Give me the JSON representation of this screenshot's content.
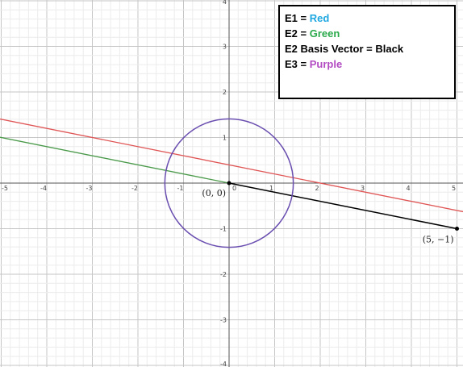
{
  "chart_data": {
    "type": "line",
    "xlim": [
      -5,
      5
    ],
    "ylim": [
      -4,
      4
    ],
    "grid": true,
    "x_ticks": [
      "-5",
      "-4",
      "-3",
      "-2",
      "-1",
      "0",
      "1",
      "2",
      "3",
      "4",
      "5"
    ],
    "y_ticks": [
      "4",
      "3",
      "2",
      "1",
      "-1",
      "-2",
      "-3",
      "-4"
    ],
    "series": [
      {
        "name": "E1",
        "kind": "line",
        "color": "#e05555",
        "points": [
          [
            -5,
            1.4
          ],
          [
            5,
            -0.6
          ]
        ]
      },
      {
        "name": "E2",
        "kind": "line",
        "color": "#4a9a4a",
        "points": [
          [
            -5,
            1.0
          ],
          [
            0,
            0
          ]
        ]
      },
      {
        "name": "E2 Basis Vector",
        "kind": "segment",
        "color": "#000000",
        "points": [
          [
            0,
            0
          ],
          [
            5,
            -1
          ]
        ]
      },
      {
        "name": "E3",
        "kind": "circle",
        "color": "#6a4fb0",
        "center": [
          0,
          0
        ],
        "radius": 1.41
      }
    ],
    "points": [
      {
        "label": "(0, 0)",
        "x": 0,
        "y": 0
      },
      {
        "label": "(5, −1)",
        "x": 5,
        "y": -1
      }
    ],
    "legend": {
      "placement": "top-right",
      "entries": [
        {
          "prefix": "E1 = ",
          "color_word": "Red",
          "color": "#1ea7e0"
        },
        {
          "prefix": "E2 = ",
          "color_word": "Green",
          "color": "#2aa94b"
        },
        {
          "prefix": "E2 Basis Vector = ",
          "color_word": "Black",
          "color": "#000000"
        },
        {
          "prefix": "E3 = ",
          "color_word": "Purple",
          "color": "#b24bc2"
        }
      ]
    }
  }
}
